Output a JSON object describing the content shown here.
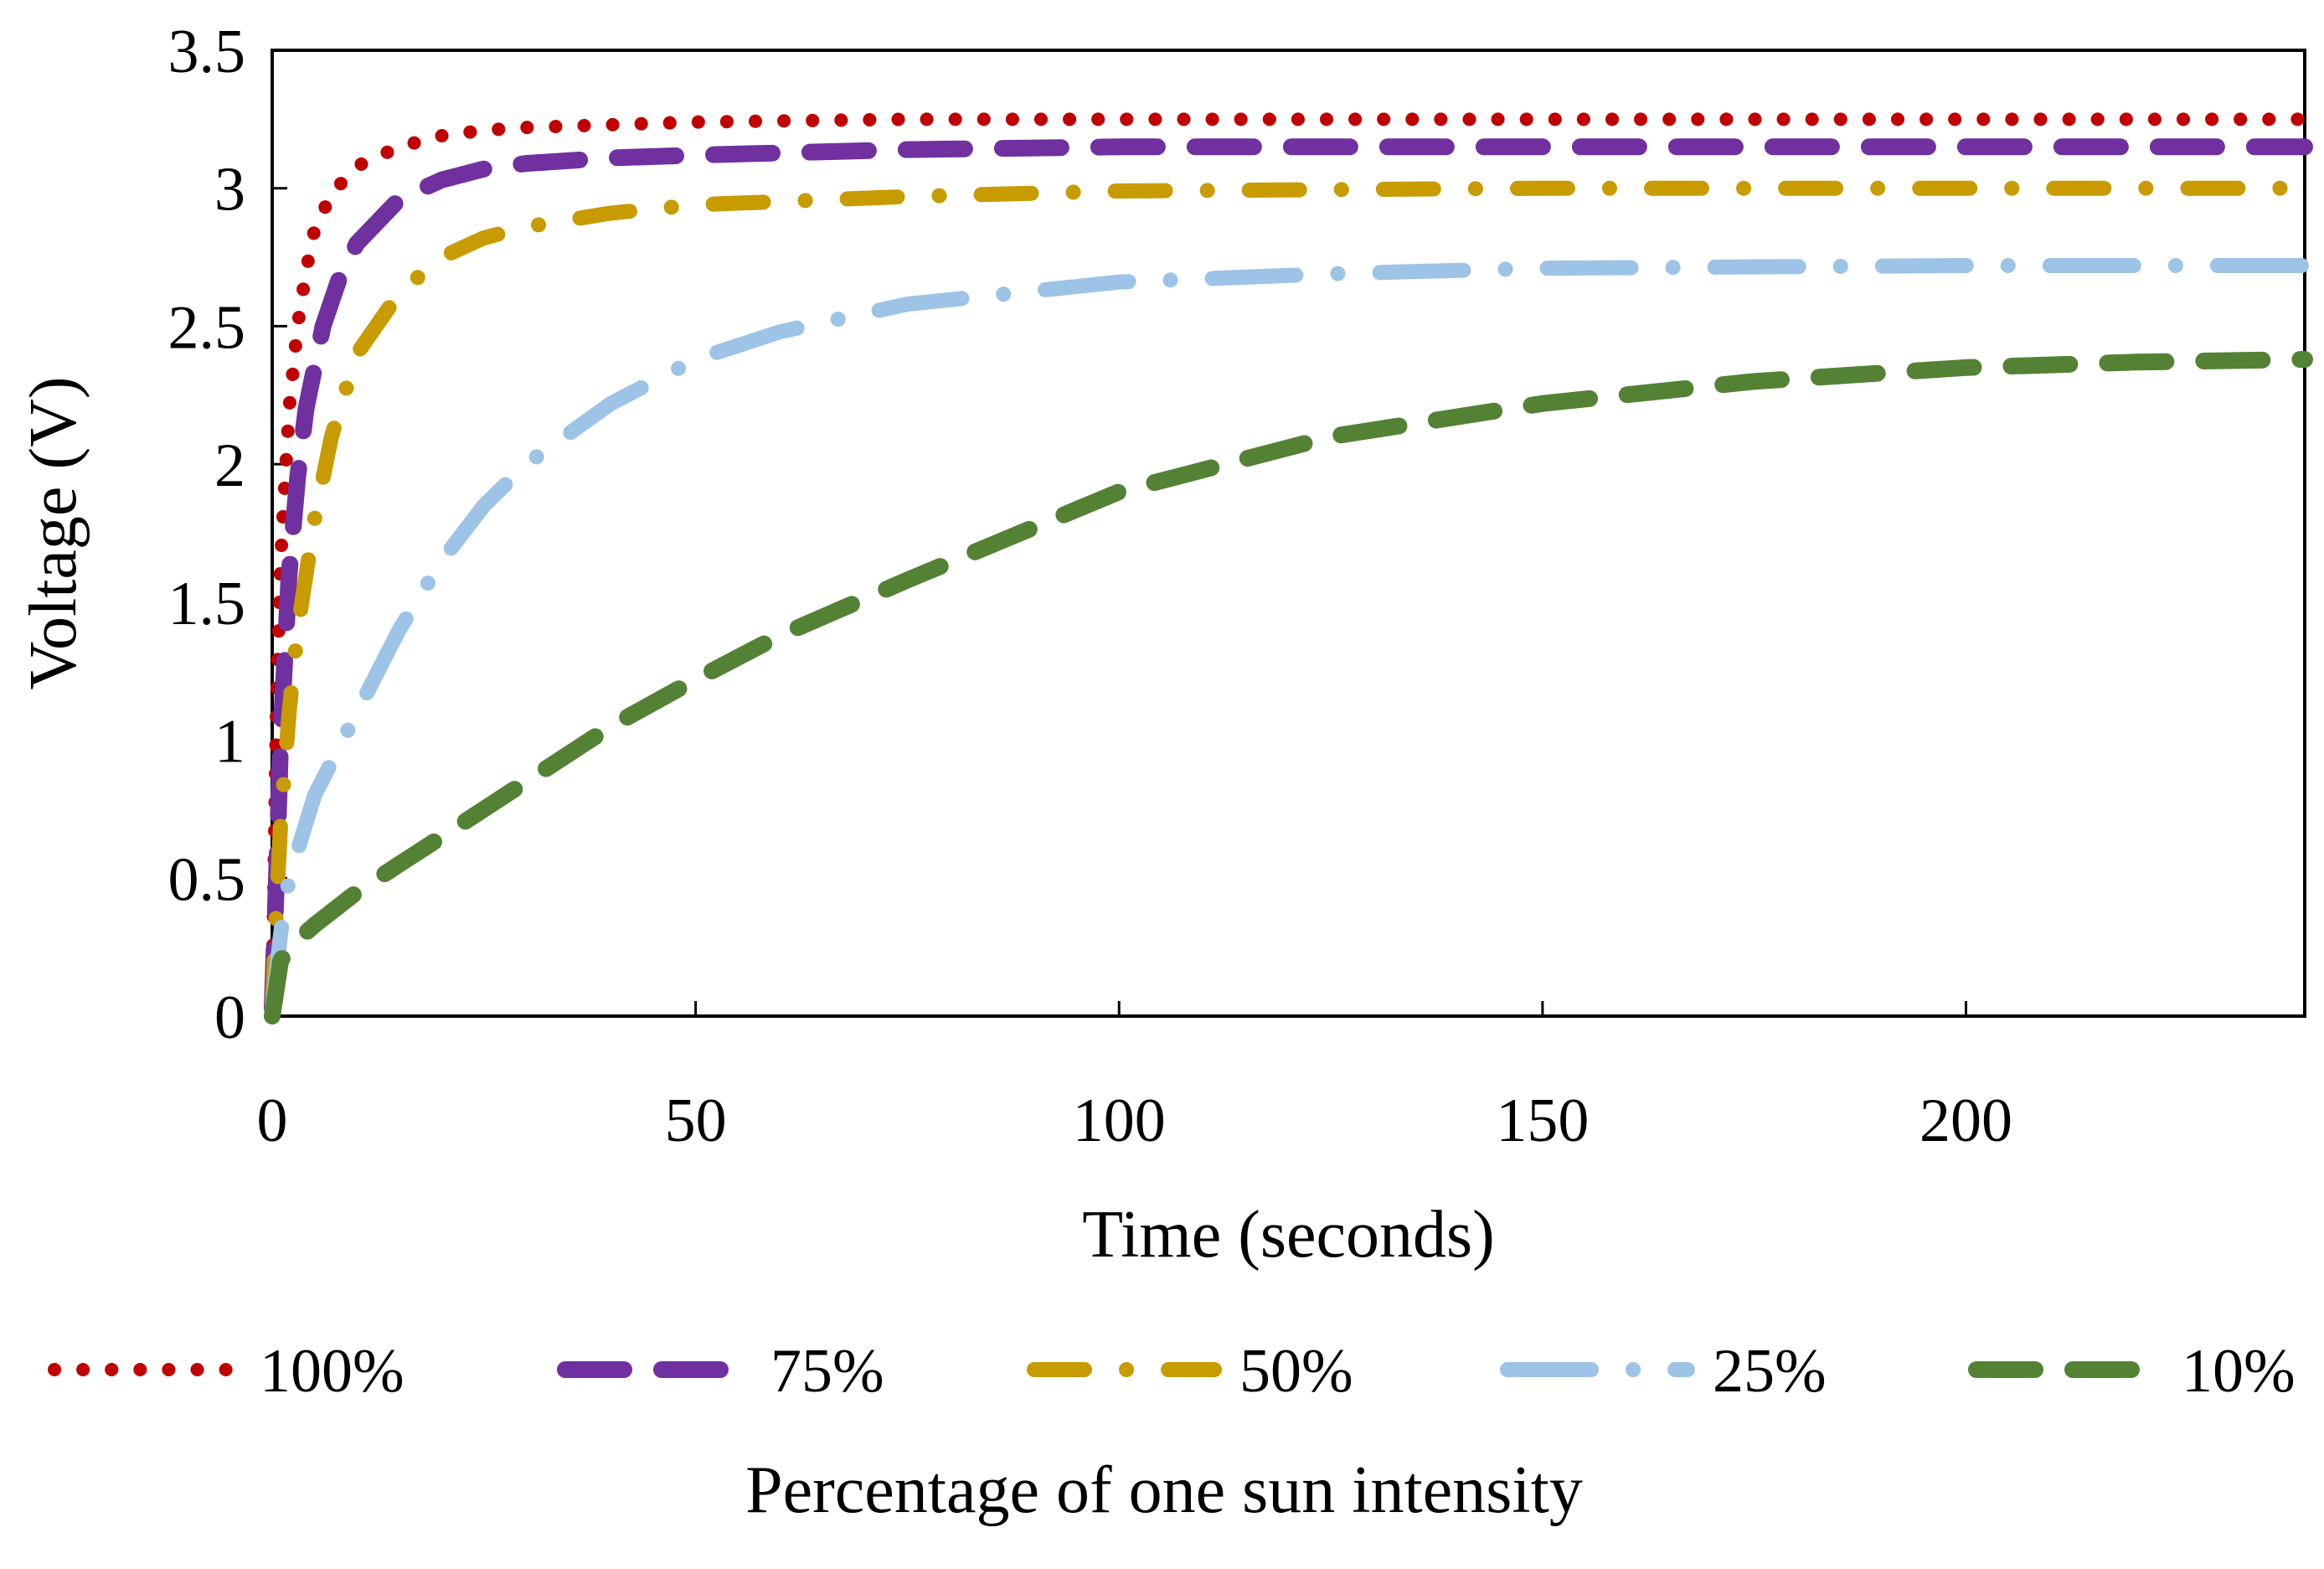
{
  "chart_data": {
    "type": "line",
    "title": "",
    "xlabel": "Time (seconds)",
    "ylabel": "Voltage (V)",
    "xlim": [
      0,
      240
    ],
    "ylim": [
      0,
      3.5
    ],
    "xticks": [
      0,
      50,
      100,
      150,
      200
    ],
    "xtick_labels": [
      "0",
      "50",
      "100",
      "150",
      "200"
    ],
    "yticks": [
      0,
      0.5,
      1,
      1.5,
      2,
      2.5,
      3,
      3.5
    ],
    "ytick_labels": [
      "0",
      "0.5",
      "1",
      "1.5",
      "2",
      "2.5",
      "3",
      "3.5"
    ],
    "grid": false,
    "legend_title": "Percentage of one sun intensity",
    "legend_position": "bottom",
    "series": [
      {
        "name": "100%",
        "color": "#C00000",
        "style": "dotted",
        "x": [
          0,
          0.5,
          1,
          2,
          3,
          4,
          5,
          7,
          10,
          15,
          20,
          25,
          30,
          40,
          50,
          75,
          100,
          150,
          200,
          240
        ],
        "y": [
          0.05,
          1.1,
          1.65,
          2.2,
          2.5,
          2.7,
          2.85,
          2.98,
          3.08,
          3.15,
          3.19,
          3.21,
          3.22,
          3.23,
          3.24,
          3.25,
          3.25,
          3.25,
          3.25,
          3.25
        ]
      },
      {
        "name": "75%",
        "color": "#7030A0",
        "style": "long-dash",
        "x": [
          0,
          0.5,
          1,
          2,
          3,
          4,
          6,
          8,
          10,
          15,
          20,
          25,
          30,
          40,
          50,
          75,
          100,
          150,
          200,
          240
        ],
        "y": [
          0.03,
          0.5,
          1.0,
          1.6,
          1.95,
          2.2,
          2.5,
          2.68,
          2.8,
          2.96,
          3.03,
          3.07,
          3.09,
          3.11,
          3.12,
          3.14,
          3.15,
          3.15,
          3.15,
          3.15
        ]
      },
      {
        "name": "50%",
        "color": "#C89B00",
        "style": "dash-dot",
        "x": [
          0,
          0.5,
          1,
          2,
          3,
          5,
          7,
          10,
          15,
          20,
          25,
          30,
          40,
          50,
          75,
          100,
          150,
          200,
          240
        ],
        "y": [
          0.02,
          0.4,
          0.7,
          1.1,
          1.4,
          1.8,
          2.1,
          2.4,
          2.62,
          2.75,
          2.82,
          2.86,
          2.91,
          2.94,
          2.97,
          2.99,
          3.0,
          3.0,
          3.0
        ]
      },
      {
        "name": "25%",
        "color": "#9DC3E6",
        "style": "long-dash-dot",
        "x": [
          0,
          1,
          2,
          5,
          10,
          15,
          20,
          25,
          30,
          40,
          50,
          60,
          75,
          100,
          125,
          150,
          200,
          240
        ],
        "y": [
          0.02,
          0.3,
          0.5,
          0.8,
          1.1,
          1.4,
          1.65,
          1.85,
          2.0,
          2.22,
          2.38,
          2.48,
          2.58,
          2.66,
          2.69,
          2.71,
          2.72,
          2.72
        ]
      },
      {
        "name": "10%",
        "color": "#548235",
        "style": "long-dash",
        "x": [
          0,
          1,
          2,
          5,
          10,
          15,
          20,
          30,
          40,
          50,
          60,
          75,
          100,
          125,
          150,
          175,
          200,
          220,
          240
        ],
        "y": [
          0.0,
          0.2,
          0.25,
          0.33,
          0.45,
          0.55,
          0.65,
          0.85,
          1.05,
          1.22,
          1.38,
          1.58,
          1.9,
          2.1,
          2.22,
          2.3,
          2.35,
          2.37,
          2.38
        ]
      }
    ]
  }
}
